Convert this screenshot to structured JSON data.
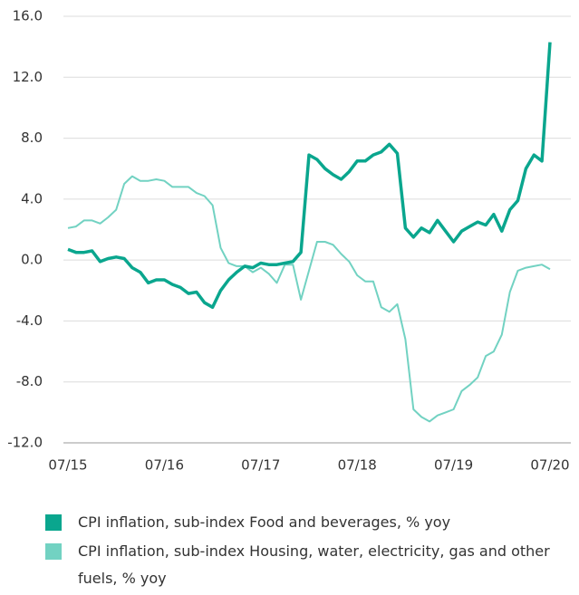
{
  "chart_data": {
    "type": "line",
    "categories": [
      "07/15",
      null,
      null,
      null,
      null,
      null,
      null,
      null,
      null,
      null,
      null,
      null,
      "07/16",
      null,
      null,
      null,
      null,
      null,
      null,
      null,
      null,
      null,
      null,
      null,
      "07/17",
      null,
      null,
      null,
      null,
      null,
      null,
      null,
      null,
      null,
      null,
      null,
      "07/18",
      null,
      null,
      null,
      null,
      null,
      null,
      null,
      null,
      null,
      null,
      null,
      "07/19",
      null,
      null,
      null,
      null,
      null,
      null,
      null,
      null,
      null,
      null,
      null,
      "07/20"
    ],
    "series": [
      {
        "name": "CPI inflation, sub-index Food and beverages, % yoy",
        "color": "#0aa68e",
        "values": [
          0.7,
          0.5,
          0.5,
          0.6,
          -0.1,
          0.1,
          0.2,
          0.1,
          -0.5,
          -0.8,
          -1.5,
          -1.3,
          -1.3,
          -1.6,
          -1.8,
          -2.2,
          -2.1,
          -2.8,
          -3.1,
          -2.0,
          -1.3,
          -0.8,
          -0.4,
          -0.5,
          -0.2,
          -0.3,
          -0.3,
          -0.2,
          -0.1,
          0.5,
          6.9,
          6.6,
          6.0,
          5.6,
          5.3,
          5.8,
          6.5,
          6.5,
          6.9,
          7.1,
          7.6,
          7.0,
          2.1,
          1.5,
          2.1,
          1.8,
          2.6,
          1.9,
          1.2,
          1.9,
          2.2,
          2.5,
          2.3,
          3.0,
          1.9,
          3.3,
          3.9,
          6.0,
          6.9,
          6.5,
          14.3
        ]
      },
      {
        "name": "CPI inflation, sub-index Housing, water, electricity, gas and other fuels, % yoy",
        "color": "#72d2c2",
        "values": [
          2.1,
          2.2,
          2.6,
          2.6,
          2.4,
          2.8,
          3.3,
          5.0,
          5.5,
          5.2,
          5.2,
          5.3,
          5.2,
          4.8,
          4.8,
          4.8,
          4.4,
          4.2,
          3.6,
          0.8,
          -0.2,
          -0.4,
          -0.4,
          -0.8,
          -0.5,
          -0.9,
          -1.5,
          -0.3,
          -0.3,
          -2.6,
          -0.7,
          1.2,
          1.2,
          1.0,
          0.4,
          -0.1,
          -1.0,
          -1.4,
          -1.4,
          -3.1,
          -3.4,
          -2.9,
          -5.2,
          -9.8,
          -10.3,
          -10.6,
          -10.2,
          -10.0,
          -9.8,
          -8.6,
          -8.2,
          -7.7,
          -6.3,
          -6.0,
          -4.9,
          -2.1,
          -0.7,
          -0.5,
          -0.4,
          -0.3,
          -0.6
        ]
      }
    ],
    "ylim": [
      -12,
      16
    ],
    "yticks": [
      {
        "value": -12,
        "label": "-12.0"
      },
      {
        "value": -8,
        "label": "-8.0"
      },
      {
        "value": -4,
        "label": "-4.0"
      },
      {
        "value": 0,
        "label": "0.0"
      },
      {
        "value": 4,
        "label": "4.0"
      },
      {
        "value": 8,
        "label": "8.0"
      },
      {
        "value": 12,
        "label": "12.0"
      },
      {
        "value": 16,
        "label": "16.0"
      }
    ],
    "grid": true
  }
}
